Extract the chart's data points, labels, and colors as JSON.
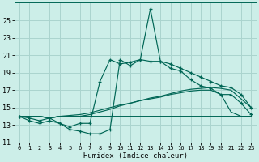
{
  "xlabel": "Humidex (Indice chaleur)",
  "bg_color": "#cceee8",
  "grid_color": "#aad4ce",
  "line_color": "#006655",
  "xlim": [
    -0.5,
    23.5
  ],
  "ylim": [
    11,
    27
  ],
  "yticks": [
    11,
    13,
    15,
    17,
    19,
    21,
    23,
    25
  ],
  "xticks": [
    0,
    1,
    2,
    3,
    4,
    5,
    6,
    7,
    8,
    9,
    10,
    11,
    12,
    13,
    14,
    15,
    16,
    17,
    18,
    19,
    20,
    21,
    22,
    23
  ],
  "s1": [
    14.0,
    13.5,
    13.2,
    13.5,
    13.2,
    12.5,
    12.3,
    12.0,
    12.0,
    12.5,
    20.5,
    19.8,
    20.5,
    26.3,
    20.3,
    20.0,
    19.5,
    19.0,
    18.5,
    18.0,
    17.5,
    17.3,
    16.5,
    15.0
  ],
  "s2": [
    14.0,
    13.8,
    13.5,
    13.8,
    13.2,
    12.8,
    13.2,
    13.2,
    18.0,
    20.5,
    20.0,
    20.2,
    20.5,
    20.3,
    20.3,
    19.5,
    19.2,
    18.2,
    17.5,
    17.2,
    16.5,
    16.5,
    15.5,
    14.2
  ],
  "s3": [
    14.0,
    14.0,
    14.0,
    13.8,
    14.0,
    14.0,
    14.0,
    14.2,
    14.5,
    14.8,
    15.2,
    15.5,
    15.8,
    16.1,
    16.3,
    16.6,
    16.9,
    17.1,
    17.2,
    17.3,
    17.2,
    17.0,
    16.0,
    15.0
  ],
  "s4": [
    14.0,
    14.0,
    14.0,
    13.8,
    14.0,
    14.1,
    14.2,
    14.4,
    14.7,
    15.0,
    15.3,
    15.5,
    15.8,
    16.0,
    16.2,
    16.5,
    16.7,
    16.9,
    17.0,
    17.0,
    16.5,
    14.5,
    14.0,
    14.0
  ],
  "s5": [
    14.0,
    14.0,
    14.0,
    13.8,
    14.0,
    14.0,
    14.0,
    14.0,
    14.0,
    14.0,
    14.0,
    14.0,
    14.0,
    14.0,
    14.0,
    14.0,
    14.0,
    14.0,
    14.0,
    14.0,
    14.0,
    14.0,
    14.0,
    14.0
  ]
}
